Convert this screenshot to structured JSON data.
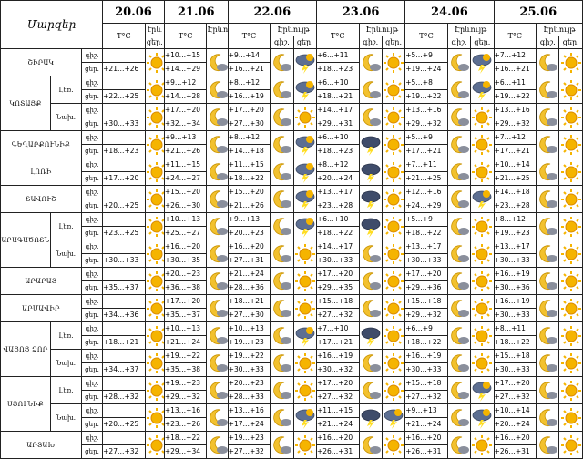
{
  "header": {
    "region_header": "Մարզեր",
    "dates": [
      "20.06",
      "21.06",
      "22.06",
      "23.06",
      "24.06",
      "25.06"
    ],
    "temp_label": "T°C",
    "precip_label": "Էրևույթ",
    "precip_label_short": "էրև",
    "day_label": "ցեր.",
    "night_label": "գիշ."
  },
  "labels": {
    "night": "գիշ.",
    "day": "ցեր."
  },
  "rows": [
    {
      "region": "ՇԻՐԱԿ",
      "sub": "",
      "t": [
        "+21…+26",
        "+10…+15",
        "+14…+29",
        "+9…+14",
        "+16…+21",
        "+6…+11",
        "+18…+23",
        "+5…+9",
        "+19…+24",
        "+7…+12",
        "+16…+21"
      ],
      "icons": [
        "sun",
        "moon",
        "sun_cloud",
        "moon",
        "thunder",
        "moon",
        "sun",
        "moon",
        "thunder",
        "moon",
        "sun"
      ]
    },
    {
      "region": "ԿՈՏԱՅՔ",
      "sub": "Լեռ.",
      "t": [
        "+22…+25",
        "+9…+12",
        "+14…+28",
        "+8…+12",
        "+16…+19",
        "+6…+10",
        "+18…+21",
        "+5…+8",
        "+19…+22",
        "+6…+11",
        "+19…+22"
      ],
      "icons": [
        "sun",
        "moon",
        "sun_cloud",
        "moon",
        "thunder",
        "moon",
        "sun",
        "moon",
        "thunder",
        "moon",
        "sun"
      ]
    },
    {
      "region": "ԿՈՏԱՅՔ",
      "sub": "Նախ.",
      "t": [
        "+30…+33",
        "+17…+20",
        "+32…+34",
        "+17…+20",
        "+27…+30",
        "+14…+17",
        "+29…+31",
        "+13…+16",
        "+29…+32",
        "+13…+16",
        "+29…+32"
      ],
      "icons": [
        "sun",
        "moon",
        "sun_cloud",
        "moon",
        "sun",
        "moon",
        "sun",
        "moon",
        "sun",
        "moon",
        "sun"
      ]
    },
    {
      "region": "ԳԵՂԱՐՔՈՒՆԻՔ",
      "sub": "",
      "t": [
        "+18…+23",
        "+9…+13",
        "+21…+26",
        "+8…+12",
        "+14…+18",
        "+6…+10",
        "+18…+23",
        "+5…+9",
        "+17…+21",
        "+7…+12",
        "+17…+21"
      ],
      "icons": [
        "sun",
        "moon",
        "sun_cloud",
        "moon",
        "thunder",
        "storm",
        "sun",
        "moon",
        "sun",
        "moon",
        "sun"
      ]
    },
    {
      "region": "ԼՈՌԻ",
      "sub": "",
      "t": [
        "+17…+20",
        "+11…+15",
        "+24…+27",
        "+11…+15",
        "+18…+22",
        "+8…+12",
        "+20…+24",
        "+7…+11",
        "+21…+25",
        "+10…+14",
        "+21…+25"
      ],
      "icons": [
        "sun",
        "moon",
        "sun_cloud",
        "moon",
        "thunder",
        "storm",
        "sun",
        "moon",
        "sun",
        "moon",
        "sun"
      ]
    },
    {
      "region": "ՏԱՎՈՒՇ",
      "sub": "",
      "t": [
        "+20…+25",
        "+15…+20",
        "+26…+30",
        "+15…+20",
        "+21…+26",
        "+13…+17",
        "+23…+28",
        "+12…+16",
        "+24…+29",
        "+14…+18",
        "+23…+28"
      ],
      "icons": [
        "sun",
        "moon",
        "sun_cloud",
        "moon",
        "thunder",
        "storm",
        "sun",
        "moon",
        "thunder",
        "moon",
        "sun"
      ]
    },
    {
      "region": "ԱՐԱԳԱԾՈՏՆ",
      "sub": "Լեռ.",
      "t": [
        "+23…+25",
        "+10…+13",
        "+25…+27",
        "+9…+13",
        "+20…+23",
        "+6…+10",
        "+18…+22",
        "+5…+9",
        "+18…+22",
        "+8…+12",
        "+19…+23"
      ],
      "icons": [
        "sun",
        "moon",
        "sun_cloud",
        "moon",
        "thunder",
        "storm",
        "sun",
        "moon",
        "sun",
        "moon",
        "sun"
      ]
    },
    {
      "region": "ԱՐԱԳԱԾՈՏՆ",
      "sub": "Նախ.",
      "t": [
        "+30…+33",
        "+16…+20",
        "+30…+35",
        "+16…+20",
        "+27…+31",
        "+14…+17",
        "+30…+33",
        "+13…+17",
        "+30…+33",
        "+13…+17",
        "+30…+33"
      ],
      "icons": [
        "sun",
        "moon",
        "sun_cloud",
        "moon",
        "sun",
        "moon",
        "sun",
        "moon",
        "sun",
        "moon",
        "sun"
      ]
    },
    {
      "region": "ԱՐԱՐԱՏ",
      "sub": "",
      "t": [
        "+35…+37",
        "+20…+23",
        "+36…+38",
        "+21…+24",
        "+28…+36",
        "+17…+20",
        "+29…+35",
        "+17…+20",
        "+29…+36",
        "+16…+19",
        "+30…+36"
      ],
      "icons": [
        "sun",
        "moon",
        "sun_cloud",
        "moon",
        "sun",
        "moon",
        "sun",
        "moon",
        "sun",
        "moon",
        "sun"
      ]
    },
    {
      "region": "ԱՐՄԱՎԻՐ",
      "sub": "",
      "t": [
        "+34…+36",
        "+17…+20",
        "+35…+37",
        "+18…+21",
        "+27…+30",
        "+15…+18",
        "+27…+32",
        "+15…+18",
        "+29…+32",
        "+16…+19",
        "+30…+33"
      ],
      "icons": [
        "sun",
        "moon",
        "sun_cloud",
        "moon",
        "sun",
        "moon",
        "sun",
        "moon",
        "sun",
        "moon",
        "sun"
      ]
    },
    {
      "region": "ՎԱՅՈՑ ՁՈՐ",
      "sub": "Լեռ.",
      "t": [
        "+18…+21",
        "+10…+13",
        "+21…+24",
        "+10…+13",
        "+19…+23",
        "+7…+10",
        "+17…+21",
        "+6…+9",
        "+18…+22",
        "+8…+11",
        "+18…+22"
      ],
      "icons": [
        "sun",
        "moon",
        "sun_cloud",
        "moon",
        "thunder",
        "storm",
        "sun",
        "moon",
        "sun",
        "moon",
        "sun"
      ]
    },
    {
      "region": "ՎԱՅՈՑ ՁՈՐ",
      "sub": "Նախ.",
      "t": [
        "+34…+37",
        "+19…+22",
        "+35…+38",
        "+19…+22",
        "+30…+33",
        "+16…+19",
        "+30…+32",
        "+16…+19",
        "+30…+33",
        "+15…+18",
        "+30…+33"
      ],
      "icons": [
        "sun",
        "moon",
        "sun_cloud",
        "moon",
        "sun",
        "moon",
        "sun",
        "moon",
        "sun",
        "moon",
        "sun"
      ]
    },
    {
      "region": "ՍՅՈՒՆԻՔ",
      "sub": "Լեռ.",
      "t": [
        "+28…+32",
        "+19…+23",
        "+29…+32",
        "+20…+23",
        "+28…+33",
        "+17…+20",
        "+27…+32",
        "+15…+18",
        "+27…+32",
        "+17…+20",
        "+27…+32"
      ],
      "icons": [
        "sun",
        "moon",
        "sun_cloud",
        "moon",
        "sun",
        "moon",
        "sun",
        "moon",
        "thunder",
        "moon",
        "sun"
      ]
    },
    {
      "region": "ՍՅՈՒՆԻՔ",
      "sub": "Նախ.",
      "t": [
        "+20…+25",
        "+13…+16",
        "+23…+26",
        "+13…+16",
        "+17…+24",
        "+11…+15",
        "+21…+24",
        "+9…+13",
        "+21…+24",
        "+10…+14",
        "+20…+24"
      ],
      "icons": [
        "sun",
        "moon",
        "sun_cloud",
        "moon",
        "thunder",
        "storm",
        "thunder",
        "moon",
        "thunder",
        "moon",
        "sun"
      ]
    },
    {
      "region": "ԱՐՏԱԽ",
      "sub": "",
      "t": [
        "+27…+32",
        "+18…+22",
        "+29…+34",
        "+19…+23",
        "+27…+32",
        "+16…+20",
        "+26…+31",
        "+16…+20",
        "+26…+31",
        "+16…+20",
        "+26…+31"
      ],
      "icons": [
        "sun",
        "moon",
        "sun_cloud",
        "moon",
        "sun",
        "moon",
        "sun",
        "moon",
        "sun",
        "moon",
        "sun"
      ]
    }
  ]
}
